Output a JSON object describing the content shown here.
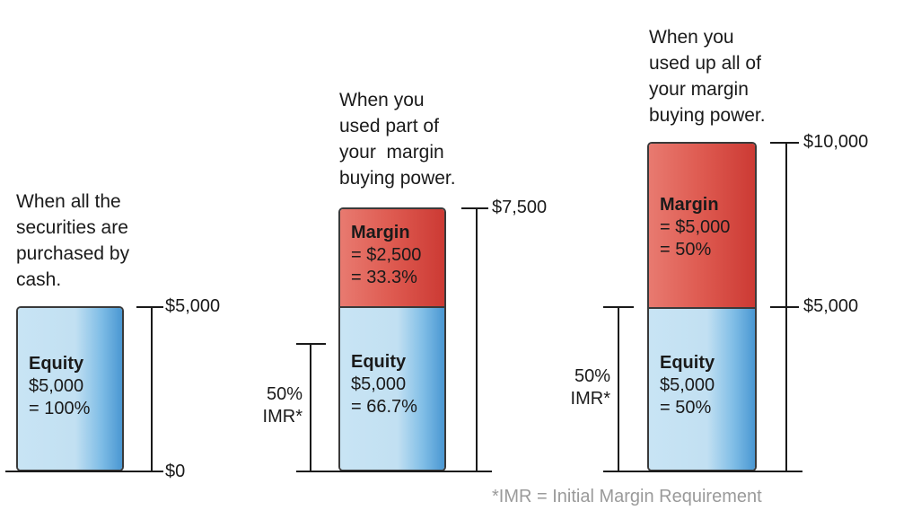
{
  "captions": {
    "cash": [
      "When all the",
      "securities are",
      "purchased by",
      "cash."
    ],
    "part": [
      "When you",
      "used part of",
      "your  margin",
      "buying power."
    ],
    "all": [
      "When you",
      "used up all of",
      "your margin",
      "buying power."
    ]
  },
  "bars": {
    "cash": {
      "equity": {
        "title": "Equity",
        "line1": "$5,000",
        "line2": "= 100%"
      },
      "ticks": {
        "top": "$5,000",
        "bottom": "$0"
      }
    },
    "part": {
      "margin": {
        "title": "Margin",
        "line1": "= $2,500",
        "line2": "= 33.3%"
      },
      "equity": {
        "title": "Equity",
        "line1": "$5,000",
        "line2": "= 66.7%"
      },
      "ticks": {
        "top": "$7,500"
      },
      "imr": {
        "line1": "50%",
        "line2": "IMR*"
      }
    },
    "all": {
      "margin": {
        "title": "Margin",
        "line1": "= $5,000",
        "line2": "= 50%"
      },
      "equity": {
        "title": "Equity",
        "line1": "$5,000",
        "line2": "= 50%"
      },
      "ticks": {
        "top": "$10,000",
        "mid": "$5,000"
      },
      "imr": {
        "line1": "50%",
        "line2": "IMR*"
      }
    }
  },
  "footnote": "*IMR = Initial Margin Requirement",
  "colors": {
    "equity": "#c2e0f2",
    "margin": "#de5a50",
    "line": "#1a1a1a",
    "footnote": "#9a9a9a"
  }
}
